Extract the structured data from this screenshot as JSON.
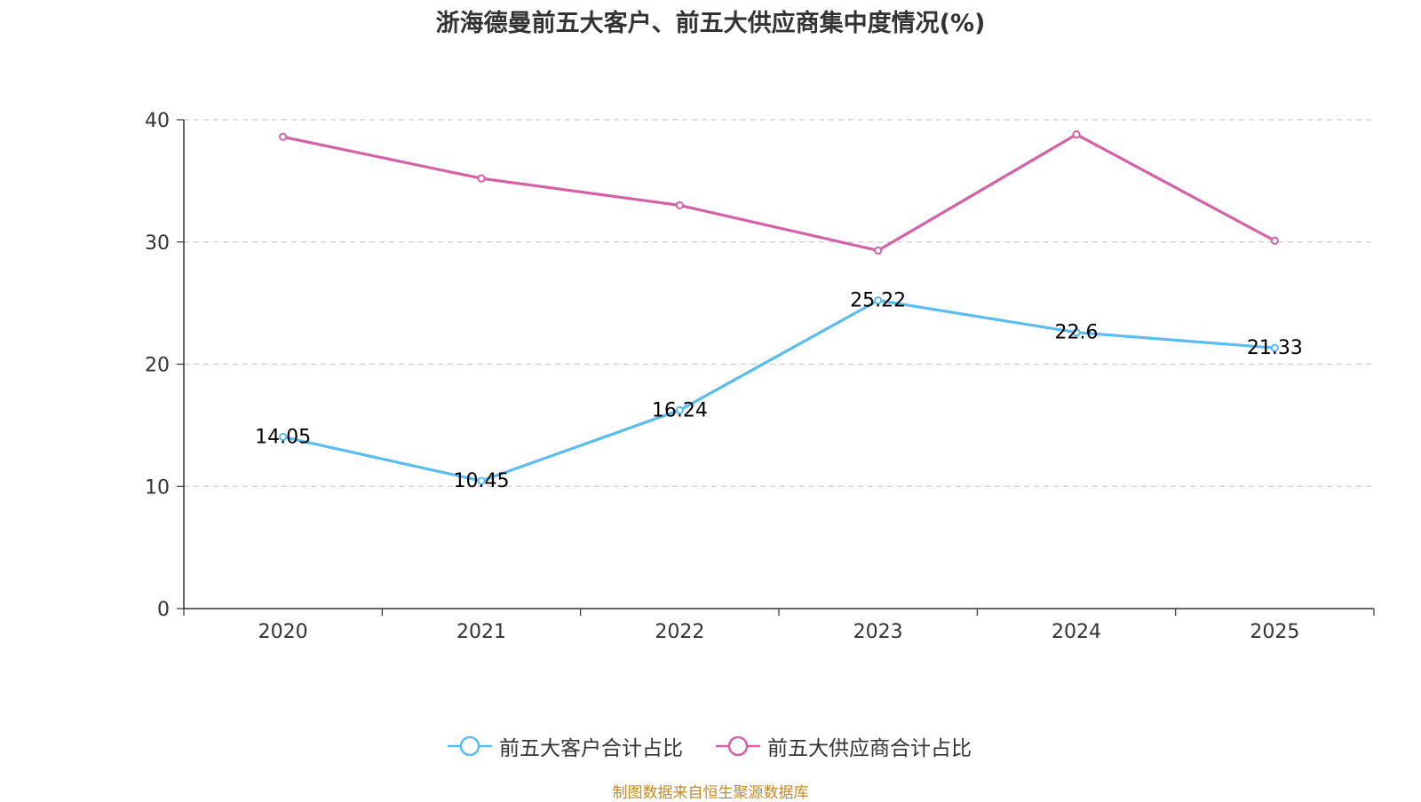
{
  "title": "浙海德曼前五大客户、前五大供应商集中度情况(%)",
  "source": "制图数据来自恒生聚源数据库",
  "chart_data": {
    "type": "line",
    "title": "浙海德曼前五大客户、前五大供应商集中度情况(%)",
    "categories": [
      "2020",
      "2021",
      "2022",
      "2023",
      "2024",
      "2025"
    ],
    "ylim": [
      0,
      40
    ],
    "yticks": [
      "0",
      "10",
      "20",
      "30",
      "40"
    ],
    "grid": true,
    "legend_position": "bottom",
    "series": [
      {
        "name": "前五大客户合计占比",
        "color": "#5bbcf0",
        "values": [
          14.05,
          10.45,
          16.24,
          25.22,
          22.6,
          21.33
        ],
        "labels": [
          "14.05",
          "10.45",
          "16.24",
          "25.22",
          "22.6",
          "21.33"
        ],
        "show_labels": true
      },
      {
        "name": "前五大供应商合计占比",
        "color": "#d462a8",
        "values": [
          38.6,
          35.2,
          33.0,
          29.3,
          38.8,
          30.1
        ],
        "show_labels": false
      }
    ]
  }
}
